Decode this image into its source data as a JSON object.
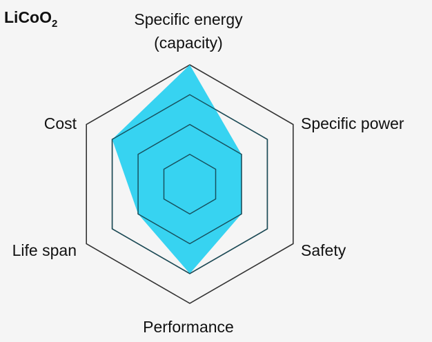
{
  "chart_data": {
    "type": "radar",
    "title": {
      "main": "LiCoO",
      "subscript": "2"
    },
    "axes": [
      {
        "lines": [
          "Specific energy",
          "(capacity)"
        ]
      },
      {
        "lines": [
          "Specific power"
        ]
      },
      {
        "lines": [
          "Safety"
        ]
      },
      {
        "lines": [
          "Performance"
        ]
      },
      {
        "lines": [
          "Life span"
        ]
      },
      {
        "lines": [
          "Cost"
        ]
      }
    ],
    "scale": {
      "min": 0,
      "max": 4,
      "rings": [
        1,
        2,
        3,
        4
      ]
    },
    "values": [
      4,
      2,
      2,
      3,
      2,
      3
    ],
    "series_color": "#1ccef0",
    "grid_color": "#333333",
    "grid": true,
    "legend": false
  }
}
